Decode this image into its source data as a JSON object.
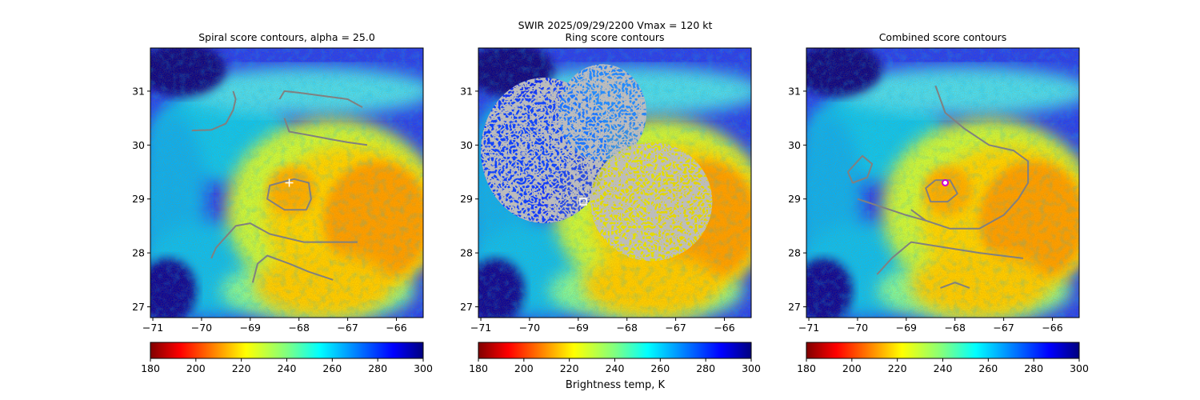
{
  "figure": {
    "suptitle_line1": "SWIR  2025/09/29/2200    Vmax = 120 kt",
    "colorbar_label": "Brightness temp, K"
  },
  "colors": {
    "contour": "#808080",
    "cold_cloud": "#00008f",
    "warm_surface": "#ffa000",
    "center_marker_ring": "#d000d0"
  },
  "colormap": "jet_r",
  "chart_data": [
    {
      "type": "heatmap",
      "title": "Spiral score contours, alpha = 25.0",
      "xlim": [
        -71.05,
        -65.45
      ],
      "ylim": [
        26.8,
        31.8
      ],
      "x_ticks": [
        -71,
        -70,
        -69,
        -68,
        -67,
        -66
      ],
      "y_ticks": [
        27,
        28,
        29,
        30,
        31
      ],
      "colorbar": {
        "min": 180,
        "max": 300,
        "ticks": [
          180,
          200,
          220,
          240,
          260,
          280,
          300
        ]
      },
      "center_marker": {
        "shape": "plus",
        "color": "#ffffff",
        "lon": -68.2,
        "lat": 29.3
      },
      "contours": [
        [
          [
            -70.2,
            30.27
          ],
          [
            -69.8,
            30.28
          ],
          [
            -69.5,
            30.4
          ],
          [
            -69.35,
            30.65
          ],
          [
            -69.3,
            30.85
          ],
          [
            -69.35,
            31.0
          ]
        ],
        [
          [
            -68.4,
            30.85
          ],
          [
            -68.3,
            31.0
          ],
          [
            -68.0,
            30.97
          ],
          [
            -67.4,
            30.9
          ],
          [
            -67.0,
            30.85
          ],
          [
            -66.7,
            30.7
          ]
        ],
        [
          [
            -68.3,
            30.5
          ],
          [
            -68.2,
            30.25
          ],
          [
            -67.9,
            30.2
          ],
          [
            -67.3,
            30.1
          ],
          [
            -67.0,
            30.05
          ],
          [
            -66.6,
            30.0
          ]
        ],
        [
          [
            -68.4,
            29.3
          ],
          [
            -68.1,
            29.37
          ],
          [
            -67.8,
            29.3
          ],
          [
            -67.75,
            29.0
          ],
          [
            -67.85,
            28.8
          ],
          [
            -68.3,
            28.8
          ],
          [
            -68.65,
            29.0
          ],
          [
            -68.6,
            29.25
          ],
          [
            -68.4,
            29.3
          ]
        ],
        [
          [
            -69.8,
            27.9
          ],
          [
            -69.7,
            28.1
          ],
          [
            -69.3,
            28.5
          ],
          [
            -69.0,
            28.55
          ],
          [
            -68.6,
            28.35
          ],
          [
            -67.9,
            28.2
          ],
          [
            -67.2,
            28.2
          ],
          [
            -66.8,
            28.2
          ]
        ],
        [
          [
            -68.95,
            27.45
          ],
          [
            -68.85,
            27.8
          ],
          [
            -68.65,
            27.95
          ],
          [
            -68.2,
            27.8
          ],
          [
            -67.8,
            27.65
          ],
          [
            -67.3,
            27.5
          ]
        ]
      ]
    },
    {
      "type": "heatmap",
      "title": "Ring score contours",
      "xlim": [
        -71.05,
        -65.45
      ],
      "ylim": [
        26.8,
        31.8
      ],
      "x_ticks": [
        -71,
        -70,
        -69,
        -68,
        -67,
        -66
      ],
      "y_ticks": [
        27,
        28,
        29,
        30,
        31
      ],
      "colorbar": {
        "min": 180,
        "max": 300,
        "ticks": [
          180,
          200,
          220,
          240,
          260,
          280,
          300
        ]
      },
      "center_marker": {
        "shape": "square",
        "color": "#ffffff",
        "lon": -68.9,
        "lat": 28.95
      },
      "ring_regions": [
        {
          "lon": -69.7,
          "lat": 29.9,
          "rlon": 1.3,
          "rlat": 1.35
        },
        {
          "lon": -68.5,
          "lat": 30.6,
          "rlon": 0.9,
          "rlat": 0.9
        },
        {
          "lon": -67.5,
          "lat": 28.95,
          "rlon": 1.25,
          "rlat": 1.1
        }
      ],
      "contours": []
    },
    {
      "type": "heatmap",
      "title": "Combined score contours",
      "xlim": [
        -71.05,
        -65.45
      ],
      "ylim": [
        26.8,
        31.8
      ],
      "x_ticks": [
        -71,
        -70,
        -69,
        -68,
        -67,
        -66
      ],
      "y_ticks": [
        27,
        28,
        29,
        30,
        31
      ],
      "colorbar": {
        "min": 180,
        "max": 300,
        "ticks": [
          180,
          200,
          220,
          240,
          260,
          280,
          300
        ]
      },
      "center_marker": {
        "shape": "circle",
        "color": "#d000d0",
        "lon": -68.2,
        "lat": 29.3
      },
      "contours": [
        [
          [
            -68.4,
            31.1
          ],
          [
            -68.2,
            30.6
          ],
          [
            -67.8,
            30.3
          ],
          [
            -67.3,
            30.0
          ],
          [
            -66.8,
            29.9
          ],
          [
            -66.5,
            29.7
          ],
          [
            -66.5,
            29.3
          ],
          [
            -66.7,
            29.0
          ],
          [
            -67.0,
            28.7
          ],
          [
            -67.5,
            28.45
          ],
          [
            -68.1,
            28.45
          ],
          [
            -68.6,
            28.6
          ],
          [
            -68.9,
            28.8
          ]
        ],
        [
          [
            -68.4,
            29.35
          ],
          [
            -68.1,
            29.35
          ],
          [
            -67.95,
            29.1
          ],
          [
            -68.15,
            28.95
          ],
          [
            -68.5,
            28.95
          ],
          [
            -68.6,
            29.2
          ],
          [
            -68.4,
            29.35
          ]
        ],
        [
          [
            -70.2,
            29.5
          ],
          [
            -70.1,
            29.6
          ],
          [
            -69.9,
            29.8
          ],
          [
            -69.7,
            29.65
          ],
          [
            -69.8,
            29.4
          ],
          [
            -70.1,
            29.3
          ],
          [
            -70.2,
            29.5
          ]
        ],
        [
          [
            -70.0,
            29.0
          ],
          [
            -69.5,
            28.85
          ],
          [
            -69.0,
            28.7
          ],
          [
            -68.6,
            28.6
          ]
        ],
        [
          [
            -69.6,
            27.6
          ],
          [
            -69.3,
            27.9
          ],
          [
            -68.9,
            28.2
          ],
          [
            -68.2,
            28.1
          ],
          [
            -67.5,
            28.0
          ],
          [
            -66.6,
            27.9
          ]
        ],
        [
          [
            -68.3,
            27.35
          ],
          [
            -68.0,
            27.45
          ],
          [
            -67.7,
            27.35
          ]
        ]
      ]
    }
  ]
}
